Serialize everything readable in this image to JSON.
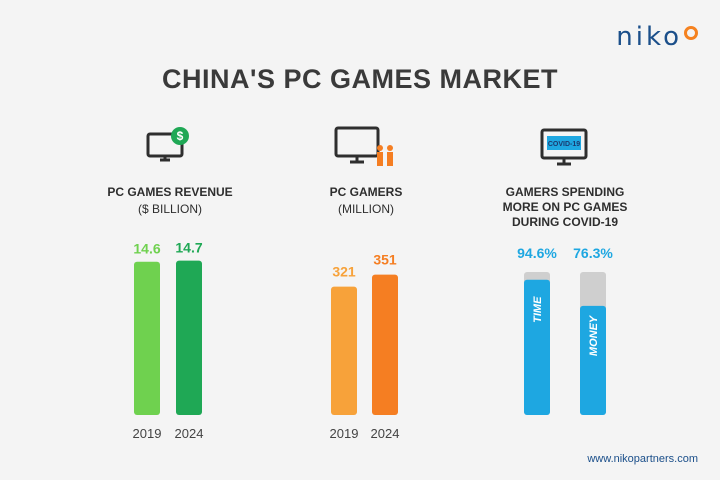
{
  "brand": {
    "name": "niko",
    "url": "www.nikopartners.com"
  },
  "colors": {
    "green_light": "#6fd14f",
    "green_dark": "#1fa855",
    "orange_light": "#f7a23a",
    "orange_dark": "#f57e22",
    "blue": "#1ea7e1",
    "gray": "#cfcfcf"
  },
  "title": "CHINA'S PC GAMES MARKET",
  "panels": [
    {
      "title": "PC GAMES REVENUE",
      "subtitle": "($ BILLION)",
      "icon": "monitor-dollar-icon"
    },
    {
      "title": "PC GAMERS",
      "subtitle": "(MILLION)",
      "icon": "monitor-people-icon"
    },
    {
      "title_lines": [
        "GAMERS SPENDING",
        "MORE ON PC GAMES",
        "DURING COVID-19"
      ],
      "icon": "monitor-covid-icon",
      "badge": "COVID-19"
    }
  ],
  "chart_data": [
    {
      "type": "bar",
      "title": "PC GAMES REVENUE",
      "unit": "($ BILLION)",
      "categories": [
        "2019",
        "2024"
      ],
      "values": [
        14.6,
        14.7
      ],
      "labels": [
        "14.6",
        "14.7"
      ]
    },
    {
      "type": "bar",
      "title": "PC GAMERS",
      "unit": "(MILLION)",
      "categories": [
        "2019",
        "2024"
      ],
      "values": [
        321,
        351
      ],
      "labels": [
        "321",
        "351"
      ]
    },
    {
      "type": "bar",
      "title": "GAMERS SPENDING MORE ON PC GAMES DURING COVID-19",
      "categories": [
        "TIME",
        "MONEY"
      ],
      "values": [
        94.6,
        76.3
      ],
      "labels": [
        "94.6%",
        "76.3%"
      ],
      "ylim": [
        0,
        100
      ]
    }
  ]
}
